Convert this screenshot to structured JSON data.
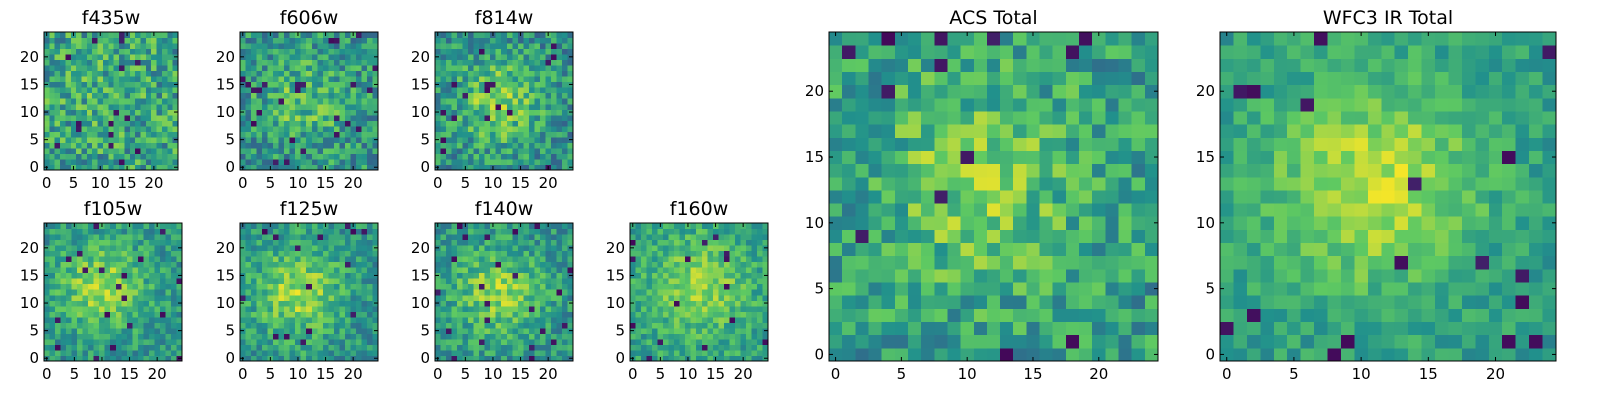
{
  "chart_data": [
    {
      "type": "heatmap",
      "title": "f435w",
      "grid_size": 25,
      "seed": 11,
      "peak": [
        10,
        15
      ],
      "amplitude": 0.05,
      "noise": 0.48,
      "base": 0.58,
      "xticks": [
        "0",
        "5",
        "10",
        "15",
        "20"
      ],
      "yticks": [
        "0",
        "5",
        "10",
        "15",
        "20"
      ],
      "xlim": [
        0,
        25
      ],
      "ylim": [
        0,
        25
      ]
    },
    {
      "type": "heatmap",
      "title": "f606w",
      "grid_size": 25,
      "seed": 23,
      "peak": [
        11,
        12
      ],
      "amplitude": 0.18,
      "noise": 0.44,
      "base": 0.52,
      "xticks": [
        "0",
        "5",
        "10",
        "15",
        "20"
      ],
      "yticks": [
        "0",
        "5",
        "10",
        "15",
        "20"
      ],
      "xlim": [
        0,
        25
      ],
      "ylim": [
        0,
        25
      ]
    },
    {
      "type": "heatmap",
      "title": "f814w",
      "grid_size": 25,
      "seed": 37,
      "peak": [
        11,
        12
      ],
      "amplitude": 0.28,
      "noise": 0.42,
      "base": 0.5,
      "xticks": [
        "0",
        "5",
        "10",
        "15",
        "20"
      ],
      "yticks": [
        "0",
        "5",
        "10",
        "15",
        "20"
      ],
      "xlim": [
        0,
        25
      ],
      "ylim": [
        0,
        25
      ]
    },
    {
      "type": "heatmap",
      "title": "f105w",
      "grid_size": 25,
      "seed": 41,
      "peak": [
        10,
        13
      ],
      "amplitude": 0.32,
      "noise": 0.32,
      "base": 0.52,
      "xticks": [
        "0",
        "5",
        "10",
        "15",
        "20"
      ],
      "yticks": [
        "0",
        "5",
        "10",
        "15",
        "20"
      ],
      "xlim": [
        0,
        25
      ],
      "ylim": [
        0,
        25
      ]
    },
    {
      "type": "heatmap",
      "title": "f125w",
      "grid_size": 25,
      "seed": 53,
      "peak": [
        10,
        12
      ],
      "amplitude": 0.32,
      "noise": 0.34,
      "base": 0.52,
      "xticks": [
        "0",
        "5",
        "10",
        "15",
        "20"
      ],
      "yticks": [
        "0",
        "5",
        "10",
        "15",
        "20"
      ],
      "xlim": [
        0,
        25
      ],
      "ylim": [
        0,
        25
      ]
    },
    {
      "type": "heatmap",
      "title": "f140w",
      "grid_size": 25,
      "seed": 67,
      "peak": [
        11,
        12
      ],
      "amplitude": 0.3,
      "noise": 0.34,
      "base": 0.52,
      "xticks": [
        "0",
        "5",
        "10",
        "15",
        "20"
      ],
      "yticks": [
        "0",
        "5",
        "10",
        "15",
        "20"
      ],
      "xlim": [
        0,
        25
      ],
      "ylim": [
        0,
        25
      ]
    },
    {
      "type": "heatmap",
      "title": "f160w",
      "grid_size": 25,
      "seed": 79,
      "peak": [
        12,
        13
      ],
      "amplitude": 0.26,
      "noise": 0.3,
      "base": 0.58,
      "xticks": [
        "0",
        "5",
        "10",
        "15",
        "20"
      ],
      "yticks": [
        "0",
        "5",
        "10",
        "15",
        "20"
      ],
      "xlim": [
        0,
        25
      ],
      "ylim": [
        0,
        25
      ]
    },
    {
      "type": "heatmap",
      "title": "ACS Total",
      "grid_size": 25,
      "seed": 97,
      "peak": [
        11,
        13
      ],
      "amplitude": 0.24,
      "noise": 0.4,
      "base": 0.55,
      "xticks": [
        "0",
        "5",
        "10",
        "15",
        "20"
      ],
      "yticks": [
        "0",
        "5",
        "10",
        "15",
        "20"
      ],
      "xlim": [
        0,
        25
      ],
      "ylim": [
        0,
        25
      ]
    },
    {
      "type": "heatmap",
      "title": "WFC3 IR Total",
      "grid_size": 25,
      "seed": 113,
      "peak": [
        11,
        13
      ],
      "amplitude": 0.36,
      "noise": 0.24,
      "base": 0.55,
      "xticks": [
        "0",
        "5",
        "10",
        "15",
        "20"
      ],
      "yticks": [
        "0",
        "5",
        "10",
        "15",
        "20"
      ],
      "xlim": [
        0,
        25
      ],
      "ylim": [
        0,
        25
      ]
    }
  ],
  "colormap": [
    "#440154",
    "#3b528b",
    "#21918c",
    "#5ec962",
    "#fde725"
  ]
}
